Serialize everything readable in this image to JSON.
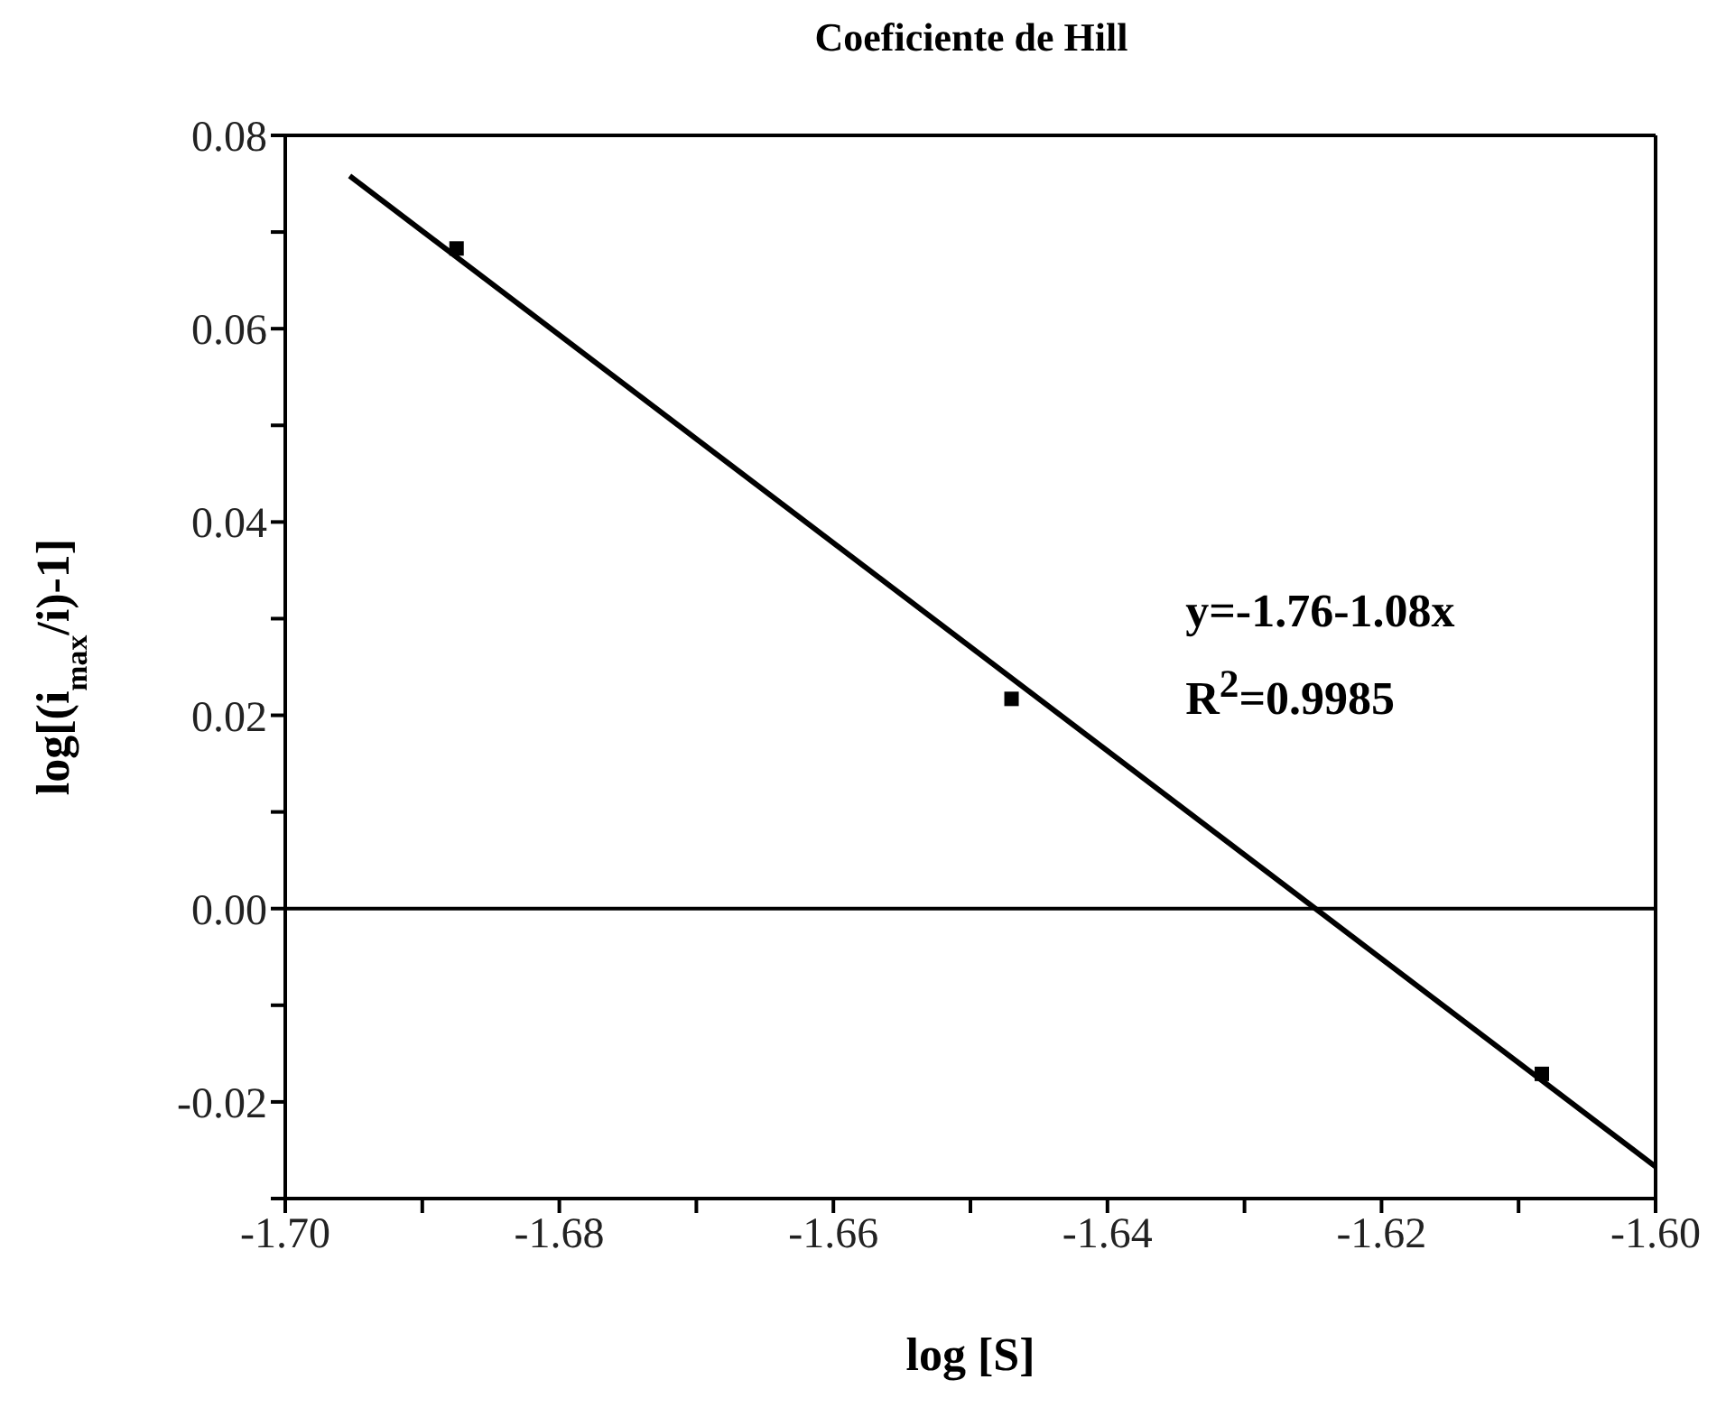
{
  "chart_data": {
    "type": "scatter",
    "title": "Coeficiente de Hill",
    "xlabel": "log [S]",
    "ylabel": "log[(i$_{max}$/i)-1]",
    "x": [
      -1.6875,
      -1.647,
      -1.6083
    ],
    "series": [
      {
        "color": "#000000",
        "values": [
          0.0683,
          0.0217,
          -0.0171
        ],
        "marker": "square"
      },
      {
        "type": "line",
        "color": "#000000",
        "x": [
          -1.6953,
          -1.6
        ],
        "values": [
          0.0758,
          -0.0267
        ],
        "marker": "none",
        "line_style": "solid"
      }
    ],
    "xlim": [
      -1.7,
      -1.6
    ],
    "xticks": [
      {
        "value": -1.7,
        "label": "-1.70"
      },
      {
        "value": -1.69,
        "label": null
      },
      {
        "value": -1.68,
        "label": "-1.68"
      },
      {
        "value": -1.67,
        "label": null
      },
      {
        "value": -1.66,
        "label": "-1.66"
      },
      {
        "value": -1.65,
        "label": null
      },
      {
        "value": -1.64,
        "label": "-1.64"
      },
      {
        "value": -1.63,
        "label": null
      },
      {
        "value": -1.62,
        "label": "-1.62"
      },
      {
        "value": -1.61,
        "label": null
      },
      {
        "value": -1.6,
        "label": "-1.60"
      }
    ],
    "ylim": [
      -0.03,
      0.08
    ],
    "yticks": [
      {
        "value": -0.03,
        "label": null
      },
      {
        "value": -0.02,
        "label": "-0.02"
      },
      {
        "value": -0.01,
        "label": null
      },
      {
        "value": 0,
        "label": "0.00"
      },
      {
        "value": 0.01,
        "label": null
      },
      {
        "value": 0.02,
        "label": "0.02"
      },
      {
        "value": 0.03,
        "label": null
      },
      {
        "value": 0.04,
        "label": "0.04"
      },
      {
        "value": 0.05,
        "label": null
      },
      {
        "value": 0.06,
        "label": "0.06"
      },
      {
        "value": 0.07,
        "label": null
      },
      {
        "value": 0.08,
        "label": "0.08"
      }
    ],
    "ref_lines": [
      {
        "axis": "y",
        "value": 0,
        "color": "#000000"
      }
    ],
    "annotations": [
      "y=-1.76-1.08x",
      "R$^{2}$=0.9985"
    ]
  }
}
